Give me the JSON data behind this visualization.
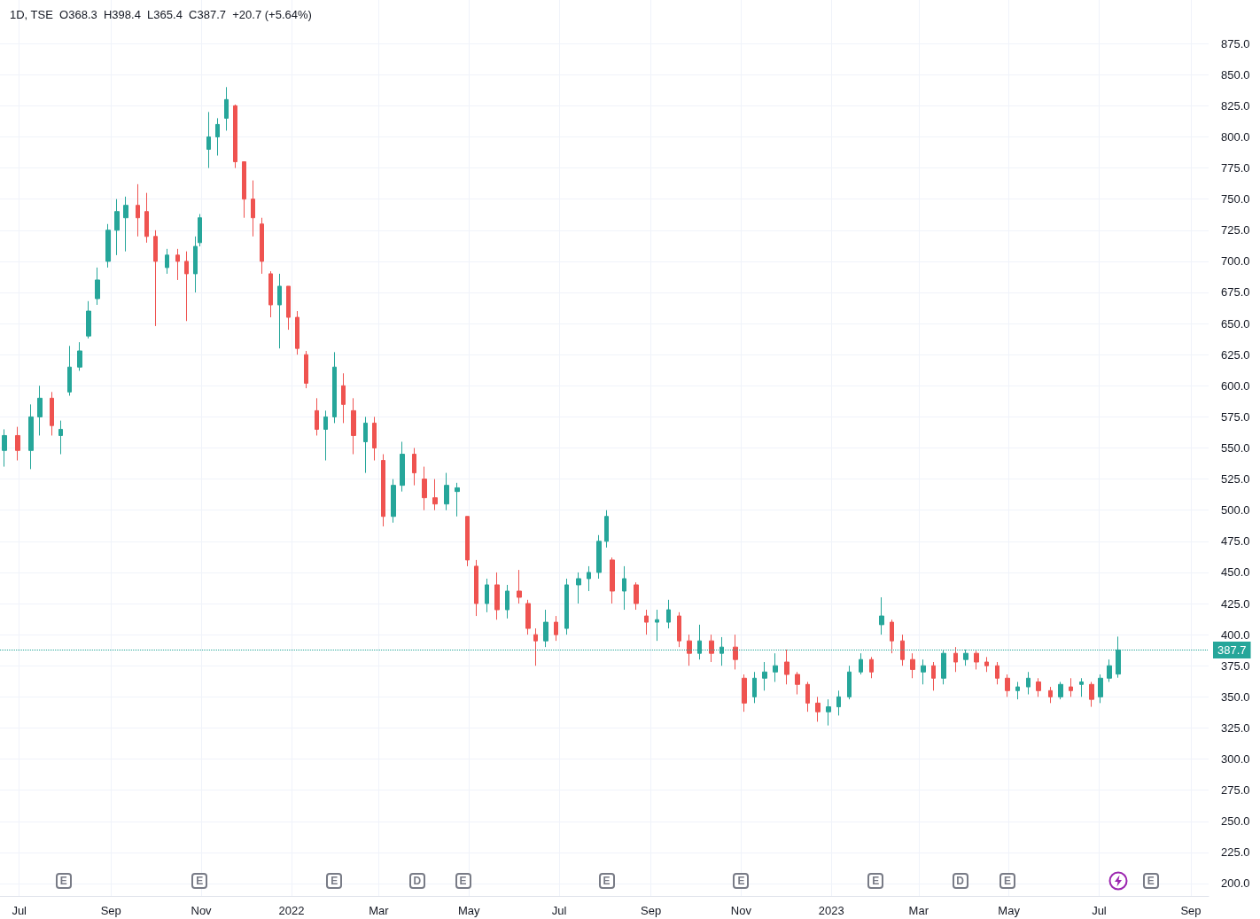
{
  "chart_data": {
    "type": "candlestick",
    "title": "1D, TSE  O368.3  H398.4  L365.4  C387.7  +20.7 (+5.64%)",
    "x": [
      "2021-06-21",
      "2021-06-30",
      "2021-07-09",
      "2021-07-15",
      "2021-07-23",
      "2021-07-29",
      "2021-08-04",
      "2021-08-11",
      "2021-08-17",
      "2021-08-23",
      "2021-08-30",
      "2021-09-05",
      "2021-09-11",
      "2021-09-19",
      "2021-09-25",
      "2021-10-01",
      "2021-10-09",
      "2021-10-16",
      "2021-10-22",
      "2021-10-28",
      "2021-10-31",
      "2021-11-06",
      "2021-11-12",
      "2021-11-18",
      "2021-11-24",
      "2021-11-30",
      "2021-12-06",
      "2021-12-12",
      "2021-12-18",
      "2021-12-24",
      "2021-12-30",
      "2022-01-05",
      "2022-01-11",
      "2022-01-18",
      "2022-01-24",
      "2022-01-30",
      "2022-02-05",
      "2022-02-12",
      "2022-02-20",
      "2022-02-26",
      "2022-03-04",
      "2022-03-11",
      "2022-03-17",
      "2022-03-25",
      "2022-04-01",
      "2022-04-08",
      "2022-04-16",
      "2022-04-23",
      "2022-04-30",
      "2022-05-06",
      "2022-05-13",
      "2022-05-20",
      "2022-05-27",
      "2022-06-04",
      "2022-06-10",
      "2022-06-15",
      "2022-06-22",
      "2022-06-29",
      "2022-07-06",
      "2022-07-14",
      "2022-07-21",
      "2022-07-28",
      "2022-08-02",
      "2022-08-06",
      "2022-08-14",
      "2022-08-22",
      "2022-08-29",
      "2022-09-05",
      "2022-09-13",
      "2022-09-20",
      "2022-09-27",
      "2022-10-04",
      "2022-10-12",
      "2022-10-19",
      "2022-10-28",
      "2022-11-03",
      "2022-11-10",
      "2022-11-17",
      "2022-11-24",
      "2022-12-02",
      "2022-12-09",
      "2022-12-16",
      "2022-12-23",
      "2022-12-30",
      "2023-01-06",
      "2023-01-13",
      "2023-01-21",
      "2023-01-28",
      "2023-02-04",
      "2023-02-11",
      "2023-02-18",
      "2023-02-25",
      "2023-03-04",
      "2023-03-11",
      "2023-03-18",
      "2023-03-26",
      "2023-04-02",
      "2023-04-09",
      "2023-04-16",
      "2023-04-23",
      "2023-04-30",
      "2023-05-07",
      "2023-05-14",
      "2023-05-21",
      "2023-05-29",
      "2023-06-05",
      "2023-06-12",
      "2023-06-19",
      "2023-06-26",
      "2023-07-02",
      "2023-07-08",
      "2023-07-14"
    ],
    "ohlc": [
      [
        548,
        565,
        535,
        560
      ],
      [
        560,
        567,
        540,
        548
      ],
      [
        548,
        585,
        533,
        575
      ],
      [
        575,
        600,
        560,
        590
      ],
      [
        590,
        595,
        560,
        568
      ],
      [
        560,
        572,
        545,
        565
      ],
      [
        595,
        632,
        592,
        615
      ],
      [
        615,
        635,
        612,
        628
      ],
      [
        640,
        668,
        638,
        660
      ],
      [
        670,
        695,
        665,
        685
      ],
      [
        700,
        730,
        695,
        725
      ],
      [
        725,
        750,
        705,
        740
      ],
      [
        735,
        752,
        708,
        745
      ],
      [
        745,
        762,
        720,
        735
      ],
      [
        740,
        755,
        715,
        720
      ],
      [
        720,
        725,
        648,
        700
      ],
      [
        695,
        710,
        690,
        705
      ],
      [
        705,
        710,
        685,
        700
      ],
      [
        700,
        708,
        652,
        690
      ],
      [
        690,
        720,
        675,
        712
      ],
      [
        715,
        738,
        712,
        735
      ],
      [
        790,
        820,
        775,
        800
      ],
      [
        800,
        815,
        785,
        810
      ],
      [
        815,
        840,
        805,
        830
      ],
      [
        825,
        826,
        775,
        780
      ],
      [
        780,
        780,
        735,
        750
      ],
      [
        750,
        765,
        720,
        735
      ],
      [
        730,
        735,
        690,
        700
      ],
      [
        690,
        692,
        655,
        665
      ],
      [
        665,
        690,
        630,
        680
      ],
      [
        680,
        680,
        645,
        655
      ],
      [
        655,
        660,
        625,
        630
      ],
      [
        625,
        628,
        598,
        602
      ],
      [
        580,
        590,
        560,
        565
      ],
      [
        565,
        580,
        540,
        575
      ],
      [
        575,
        627,
        570,
        615
      ],
      [
        600,
        610,
        570,
        585
      ],
      [
        580,
        590,
        545,
        560
      ],
      [
        555,
        575,
        530,
        570
      ],
      [
        570,
        575,
        540,
        550
      ],
      [
        540,
        545,
        487,
        495
      ],
      [
        495,
        525,
        490,
        520
      ],
      [
        520,
        555,
        515,
        545
      ],
      [
        545,
        550,
        520,
        530
      ],
      [
        525,
        535,
        500,
        510
      ],
      [
        510,
        525,
        500,
        505
      ],
      [
        505,
        530,
        500,
        520
      ],
      [
        515,
        522,
        495,
        518
      ],
      [
        495,
        495,
        455,
        460
      ],
      [
        455,
        460,
        415,
        425
      ],
      [
        425,
        445,
        418,
        440
      ],
      [
        440,
        450,
        412,
        420
      ],
      [
        420,
        440,
        413,
        435
      ],
      [
        435,
        452,
        425,
        430
      ],
      [
        425,
        428,
        400,
        405
      ],
      [
        400,
        405,
        375,
        395
      ],
      [
        395,
        420,
        390,
        410
      ],
      [
        410,
        415,
        395,
        400
      ],
      [
        405,
        445,
        400,
        440
      ],
      [
        440,
        450,
        425,
        445
      ],
      [
        445,
        455,
        435,
        450
      ],
      [
        450,
        480,
        445,
        475
      ],
      [
        475,
        500,
        470,
        495
      ],
      [
        460,
        462,
        425,
        435
      ],
      [
        435,
        455,
        420,
        445
      ],
      [
        440,
        442,
        420,
        425
      ],
      [
        415,
        420,
        400,
        410
      ],
      [
        410,
        420,
        395,
        412
      ],
      [
        410,
        428,
        405,
        420
      ],
      [
        415,
        418,
        390,
        395
      ],
      [
        395,
        400,
        375,
        385
      ],
      [
        385,
        408,
        380,
        395
      ],
      [
        395,
        400,
        378,
        385
      ],
      [
        385,
        398,
        375,
        390
      ],
      [
        390,
        400,
        372,
        380
      ],
      [
        365,
        368,
        338,
        345
      ],
      [
        350,
        370,
        345,
        365
      ],
      [
        365,
        378,
        355,
        370
      ],
      [
        370,
        385,
        362,
        375
      ],
      [
        378,
        388,
        360,
        368
      ],
      [
        368,
        370,
        352,
        360
      ],
      [
        360,
        362,
        338,
        345
      ],
      [
        345,
        350,
        330,
        338
      ],
      [
        338,
        348,
        327,
        342
      ],
      [
        342,
        355,
        335,
        350
      ],
      [
        350,
        375,
        348,
        370
      ],
      [
        370,
        385,
        368,
        380
      ],
      [
        380,
        382,
        365,
        370
      ],
      [
        408,
        430,
        400,
        415
      ],
      [
        410,
        412,
        385,
        395
      ],
      [
        395,
        400,
        375,
        380
      ],
      [
        380,
        385,
        365,
        372
      ],
      [
        370,
        380,
        360,
        375
      ],
      [
        375,
        378,
        355,
        365
      ],
      [
        365,
        388,
        360,
        385
      ],
      [
        385,
        390,
        370,
        378
      ],
      [
        380,
        388,
        375,
        385
      ],
      [
        385,
        387,
        372,
        378
      ],
      [
        378,
        382,
        370,
        375
      ],
      [
        375,
        378,
        360,
        365
      ],
      [
        365,
        368,
        350,
        355
      ],
      [
        355,
        362,
        348,
        358
      ],
      [
        358,
        370,
        352,
        365
      ],
      [
        362,
        365,
        350,
        355
      ],
      [
        355,
        358,
        345,
        350
      ],
      [
        350,
        362,
        348,
        360
      ],
      [
        358,
        365,
        350,
        355
      ],
      [
        360,
        365,
        350,
        362
      ],
      [
        360,
        362,
        342,
        348
      ],
      [
        350,
        368,
        345,
        365
      ],
      [
        365,
        380,
        362,
        375
      ],
      [
        368.3,
        398.4,
        365.4,
        387.7
      ]
    ],
    "colors": [
      "#26a69a",
      "#ef5350",
      "#26a69a",
      "#26a69a",
      "#ef5350",
      "#26a69a",
      "#26a69a",
      "#26a69a",
      "#26a69a",
      "#26a69a",
      "#26a69a",
      "#26a69a",
      "#26a69a",
      "#ef5350",
      "#ef5350",
      "#ef5350",
      "#26a69a",
      "#ef5350",
      "#ef5350",
      "#26a69a",
      "#26a69a",
      "#26a69a",
      "#26a69a",
      "#26a69a",
      "#ef5350",
      "#ef5350",
      "#ef5350",
      "#ef5350",
      "#ef5350",
      "#26a69a",
      "#ef5350",
      "#ef5350",
      "#ef5350",
      "#ef5350",
      "#26a69a",
      "#26a69a",
      "#ef5350",
      "#ef5350",
      "#26a69a",
      "#ef5350",
      "#ef5350",
      "#26a69a",
      "#26a69a",
      "#ef5350",
      "#ef5350",
      "#ef5350",
      "#26a69a",
      "#26a69a",
      "#ef5350",
      "#ef5350",
      "#26a69a",
      "#ef5350",
      "#26a69a",
      "#ef5350",
      "#ef5350",
      "#ef5350",
      "#26a69a",
      "#ef5350",
      "#26a69a",
      "#26a69a",
      "#26a69a",
      "#26a69a",
      "#26a69a",
      "#ef5350",
      "#26a69a",
      "#ef5350",
      "#ef5350",
      "#26a69a",
      "#26a69a",
      "#ef5350",
      "#ef5350",
      "#26a69a",
      "#ef5350",
      "#26a69a",
      "#ef5350",
      "#ef5350",
      "#26a69a",
      "#26a69a",
      "#26a69a",
      "#ef5350",
      "#ef5350",
      "#ef5350",
      "#ef5350",
      "#26a69a",
      "#26a69a",
      "#26a69a",
      "#26a69a",
      "#ef5350",
      "#26a69a",
      "#ef5350",
      "#ef5350",
      "#ef5350",
      "#26a69a",
      "#ef5350",
      "#26a69a",
      "#ef5350",
      "#26a69a",
      "#ef5350",
      "#ef5350",
      "#ef5350",
      "#ef5350",
      "#26a69a",
      "#26a69a",
      "#ef5350",
      "#ef5350",
      "#26a69a",
      "#ef5350",
      "#26a69a",
      "#ef5350",
      "#26a69a",
      "#26a69a",
      "#26a69a"
    ],
    "xlim": [
      "2021-06-18",
      "2023-09-13"
    ],
    "xticks": [
      {
        "value": "2021-07-01",
        "label": "Jul"
      },
      {
        "value": "2021-09-01",
        "label": "Sep"
      },
      {
        "value": "2021-11-01",
        "label": "Nov"
      },
      {
        "value": "2022-01-01",
        "label": "2022"
      },
      {
        "value": "2022-03-01",
        "label": "Mar"
      },
      {
        "value": "2022-05-01",
        "label": "May"
      },
      {
        "value": "2022-07-01",
        "label": "Jul"
      },
      {
        "value": "2022-09-01",
        "label": "Sep"
      },
      {
        "value": "2022-11-01",
        "label": "Nov"
      },
      {
        "value": "2023-01-01",
        "label": "2023"
      },
      {
        "value": "2023-03-01",
        "label": "Mar"
      },
      {
        "value": "2023-05-01",
        "label": "May"
      },
      {
        "value": "2023-07-01",
        "label": "Jul"
      },
      {
        "value": "2023-09-01",
        "label": "Sep"
      }
    ],
    "ylim": [
      190,
      910
    ],
    "yticks": [
      {
        "value": 200,
        "label": "200.0"
      },
      {
        "value": 225,
        "label": "225.0"
      },
      {
        "value": 250,
        "label": "250.0"
      },
      {
        "value": 275,
        "label": "275.0"
      },
      {
        "value": 300,
        "label": "300.0"
      },
      {
        "value": 325,
        "label": "325.0"
      },
      {
        "value": 350,
        "label": "350.0"
      },
      {
        "value": 375,
        "label": "375.0"
      },
      {
        "value": 400,
        "label": "400.0"
      },
      {
        "value": 425,
        "label": "425.0"
      },
      {
        "value": 450,
        "label": "450.0"
      },
      {
        "value": 475,
        "label": "475.0"
      },
      {
        "value": 500,
        "label": "500.0"
      },
      {
        "value": 525,
        "label": "525.0"
      },
      {
        "value": 550,
        "label": "550.0"
      },
      {
        "value": 575,
        "label": "575.0"
      },
      {
        "value": 600,
        "label": "600.0"
      },
      {
        "value": 625,
        "label": "625.0"
      },
      {
        "value": 650,
        "label": "650.0"
      },
      {
        "value": 675,
        "label": "675.0"
      },
      {
        "value": 700,
        "label": "700.0"
      },
      {
        "value": 725,
        "label": "725.0"
      },
      {
        "value": 750,
        "label": "750.0"
      },
      {
        "value": 775,
        "label": "775.0"
      },
      {
        "value": 800,
        "label": "800.0"
      },
      {
        "value": 825,
        "label": "825.0"
      },
      {
        "value": 850,
        "label": "850.0"
      },
      {
        "value": 875,
        "label": "875.0"
      }
    ],
    "ref_lines": [
      {
        "axis": "y",
        "value": 387.7,
        "label": "387.7",
        "color": "#26a69a",
        "line_style": "dotted"
      }
    ],
    "annotations": [
      {
        "text": "E",
        "x": "2021-07-31"
      },
      {
        "text": "E",
        "x": "2021-10-31"
      },
      {
        "text": "E",
        "x": "2022-01-30"
      },
      {
        "text": "D",
        "x": "2022-03-27"
      },
      {
        "text": "E",
        "x": "2022-04-27"
      },
      {
        "text": "E",
        "x": "2022-08-02"
      },
      {
        "text": "E",
        "x": "2022-11-01"
      },
      {
        "text": "E",
        "x": "2023-01-31"
      },
      {
        "text": "D",
        "x": "2023-03-29"
      },
      {
        "text": "E",
        "x": "2023-04-30"
      },
      {
        "text": "E",
        "x": "2023-08-05"
      }
    ],
    "grid": true
  }
}
